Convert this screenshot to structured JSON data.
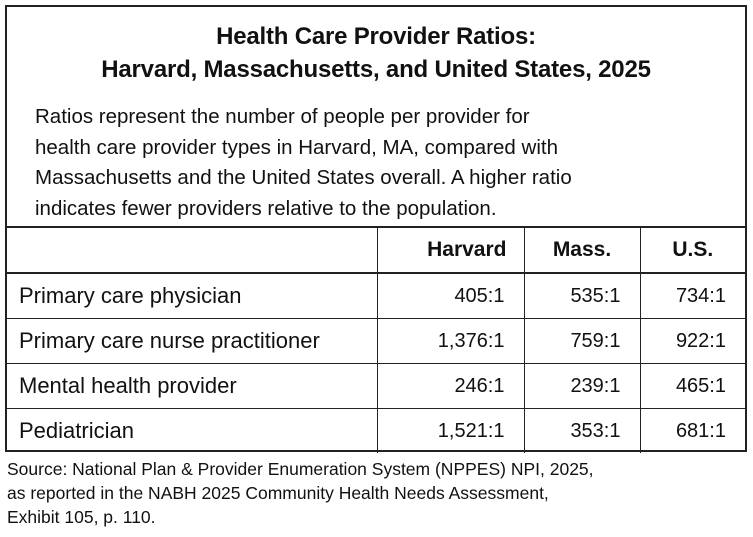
{
  "title_lines": [
    "Health Care Provider Ratios:",
    "Harvard, Massachusetts, and United States, 2025"
  ],
  "description_lines": [
    "Ratios represent the number of people per provider for",
    "health care provider types in Harvard, MA, compared with",
    "Massachusetts and the United States overall. A higher ratio",
    "indicates fewer providers relative to the population."
  ],
  "table": {
    "headers": [
      "",
      "Harvard",
      "Mass.",
      "U.S."
    ],
    "rows": [
      {
        "label": "Primary care physician",
        "harvard": "405:1",
        "mass": "535:1",
        "us": "734:1"
      },
      {
        "label": "Primary care nurse practitioner",
        "harvard": "1,376:1",
        "mass": "759:1",
        "us": "922:1"
      },
      {
        "label": "Mental health provider",
        "harvard": "246:1",
        "mass": "239:1",
        "us": "465:1"
      },
      {
        "label": "Pediatrician",
        "harvard": "1,521:1",
        "mass": "353:1",
        "us": "681:1"
      }
    ]
  },
  "source_lines": [
    "Source: National Plan & Provider Enumeration System (NPPES) NPI, 2025,",
    "as reported in the NABH 2025 Community Health Needs Assessment,",
    "Exhibit 105, p. 110."
  ]
}
